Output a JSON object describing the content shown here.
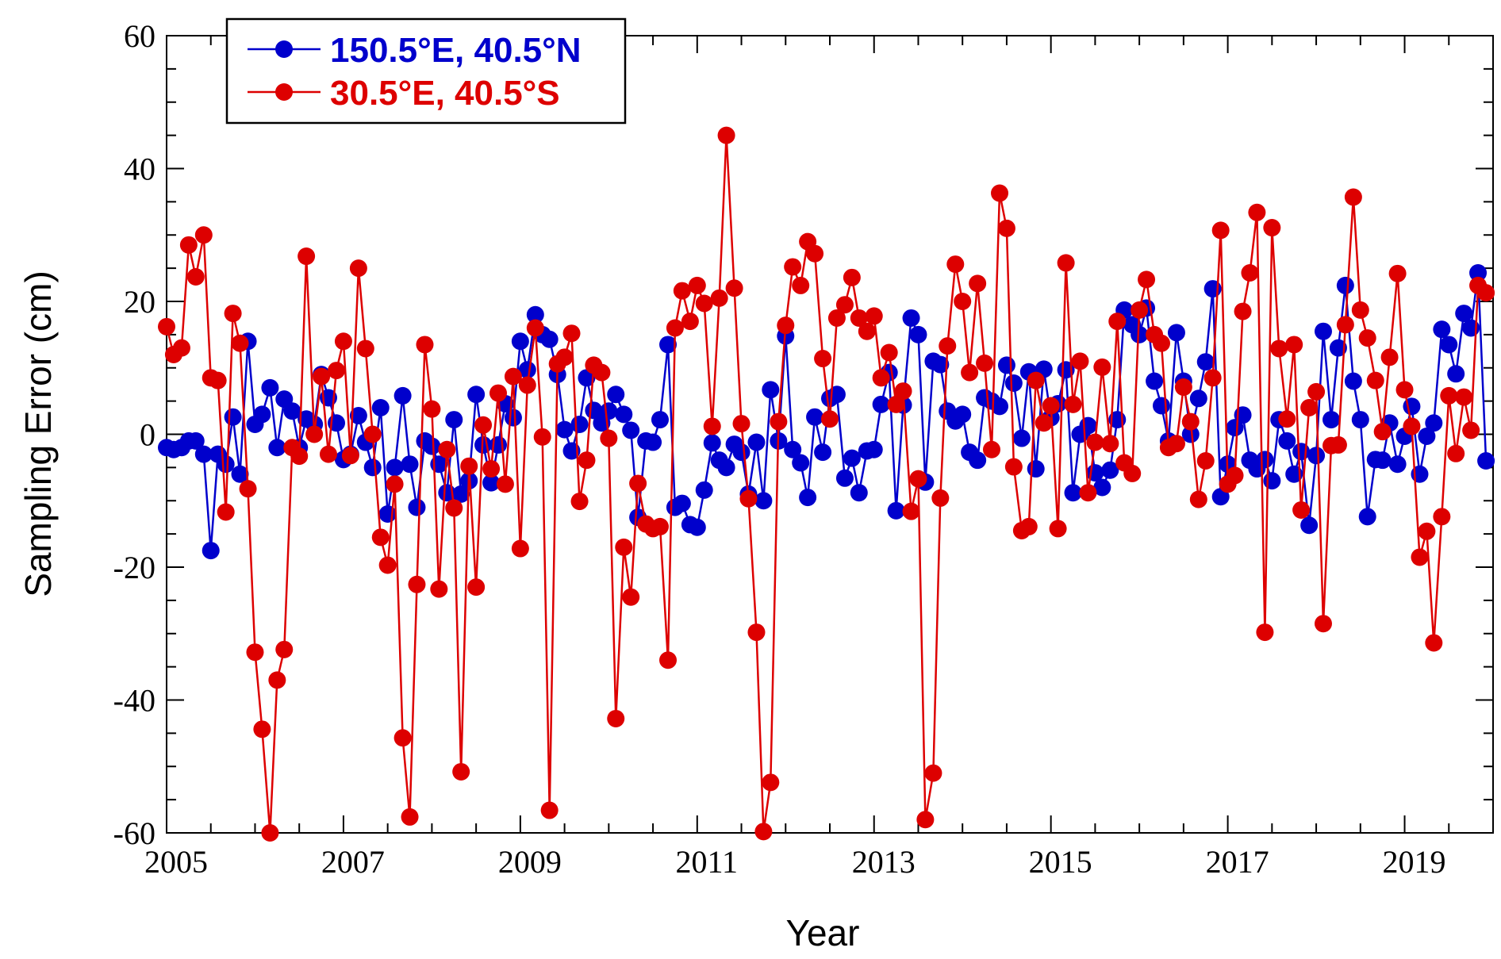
{
  "chart_data": {
    "type": "line",
    "title": "",
    "xlabel": "Year",
    "ylabel": "Sampling Error (cm)",
    "xlim": [
      2005,
      2020
    ],
    "ylim": [
      -60,
      60
    ],
    "x_ticks": [
      2005,
      2007,
      2009,
      2011,
      2013,
      2015,
      2017,
      2019
    ],
    "y_ticks": [
      -60,
      -40,
      -20,
      0,
      20,
      40,
      60
    ],
    "grid": false,
    "legend_position": "top-left",
    "x": [
      2005.0,
      2005.08,
      2005.17,
      2005.25,
      2005.33,
      2005.42,
      2005.5,
      2005.58,
      2005.67,
      2005.75,
      2005.83,
      2005.92,
      2006.0,
      2006.08,
      2006.17,
      2006.25,
      2006.33,
      2006.42,
      2006.5,
      2006.58,
      2006.67,
      2006.75,
      2006.83,
      2006.92,
      2007.0,
      2007.08,
      2007.17,
      2007.25,
      2007.33,
      2007.42,
      2007.5,
      2007.58,
      2007.67,
      2007.75,
      2007.83,
      2007.92,
      2008.0,
      2008.08,
      2008.17,
      2008.25,
      2008.33,
      2008.42,
      2008.5,
      2008.58,
      2008.67,
      2008.75,
      2008.83,
      2008.92,
      2009.0,
      2009.08,
      2009.17,
      2009.25,
      2009.33,
      2009.42,
      2009.5,
      2009.58,
      2009.67,
      2009.75,
      2009.83,
      2009.92,
      2010.0,
      2010.08,
      2010.17,
      2010.25,
      2010.33,
      2010.42,
      2010.5,
      2010.58,
      2010.67,
      2010.75,
      2010.83,
      2010.92,
      2011.0,
      2011.08,
      2011.17,
      2011.25,
      2011.33,
      2011.42,
      2011.5,
      2011.58,
      2011.67,
      2011.75,
      2011.83,
      2011.92,
      2012.0,
      2012.08,
      2012.17,
      2012.25,
      2012.33,
      2012.42,
      2012.5,
      2012.58,
      2012.67,
      2012.75,
      2012.83,
      2012.92,
      2013.0,
      2013.08,
      2013.17,
      2013.25,
      2013.33,
      2013.42,
      2013.5,
      2013.58,
      2013.67,
      2013.75,
      2013.83,
      2013.92,
      2014.0,
      2014.08,
      2014.17,
      2014.25,
      2014.33,
      2014.42,
      2014.5,
      2014.58,
      2014.67,
      2014.75,
      2014.83,
      2014.92,
      2015.0,
      2015.08,
      2015.17,
      2015.25,
      2015.33,
      2015.42,
      2015.5,
      2015.58,
      2015.67,
      2015.75,
      2015.83,
      2015.92,
      2016.0,
      2016.08,
      2016.17,
      2016.25,
      2016.33,
      2016.42,
      2016.5,
      2016.58,
      2016.67,
      2016.75,
      2016.83,
      2016.92,
      2017.0,
      2017.08,
      2017.17,
      2017.25,
      2017.33,
      2017.42,
      2017.5,
      2017.58,
      2017.67,
      2017.75,
      2017.83,
      2017.92,
      2018.0,
      2018.08,
      2018.17,
      2018.25,
      2018.33,
      2018.42,
      2018.5,
      2018.58,
      2018.67,
      2018.75,
      2018.83,
      2018.92,
      2019.0,
      2019.08,
      2019.17,
      2019.25,
      2019.33,
      2019.42,
      2019.5,
      2019.58,
      2019.67,
      2019.75,
      2019.83,
      2019.92
    ],
    "series": [
      {
        "name": "150.5°E, 40.5°N",
        "color": "#0000cc",
        "values": [
          -2,
          -2.3,
          -2,
          -1,
          -1,
          -3,
          -17.5,
          -3,
          -4.5,
          2.6,
          -6,
          14,
          1.5,
          3,
          7,
          -2,
          5.3,
          3.5,
          -2,
          2.3,
          1.5,
          9,
          5.5,
          1.7,
          -3.8,
          -3,
          2.8,
          -1.2,
          -5,
          4,
          -12,
          -5,
          5.8,
          -4.5,
          -11,
          -1,
          -1.8,
          -4.5,
          -8.8,
          2.2,
          -9,
          -7,
          6,
          -1.6,
          -7.3,
          -1.6,
          4.6,
          2.5,
          14,
          9.7,
          18,
          15,
          14.3,
          9,
          0.7,
          -2.5,
          1.5,
          8.5,
          3.6,
          1.7,
          3.5,
          6,
          3,
          0.6,
          -12.5,
          -1,
          -1.2,
          2.2,
          13.5,
          -11,
          -10.4,
          -13.6,
          -14,
          -8.4,
          -1.3,
          -3.9,
          -5,
          -1.5,
          -2.7,
          -9,
          -1.2,
          -10,
          6.7,
          -1,
          14.8,
          -2.3,
          -4.3,
          -9.5,
          2.6,
          -2.7,
          5.4,
          6,
          -6.6,
          -3.6,
          -8.8,
          -2.5,
          -2.3,
          4.5,
          9.3,
          -11.5,
          4.4,
          17.5,
          15,
          -7.2,
          11,
          10.5,
          3.5,
          2,
          3,
          -2.7,
          -3.9,
          5.5,
          5,
          4.2,
          10.4,
          7.7,
          -0.6,
          9.4,
          -5.2,
          9.8,
          2.5,
          4.6,
          9.7,
          -8.8,
          0,
          1.3,
          -5.8,
          -8,
          -5.4,
          2.2,
          18.7,
          16.5,
          15,
          19,
          8,
          4.3,
          -1,
          15.3,
          8,
          0,
          5.4,
          10.9,
          21.9,
          -9.4,
          -4.5,
          1,
          2.9,
          -3.9,
          -5.2,
          -3.8,
          -7,
          2.2,
          -1,
          -6,
          -2.6,
          -13.7,
          -3.2,
          15.5,
          2.2,
          13,
          22.4,
          8,
          2.2,
          -12.4,
          -3.8,
          -3.9,
          1.7,
          -4.5,
          -0.3,
          4.2,
          -6,
          -0.3,
          1.7,
          15.8,
          13.5,
          9.1,
          18.2,
          16,
          24.3,
          -4
        ]
      },
      {
        "name": "30.5°E, 40.5°S",
        "color": "#dd0000",
        "values": [
          16.2,
          12,
          13,
          28.5,
          23.7,
          30,
          8.5,
          8.1,
          -11.7,
          18.2,
          13.7,
          -8.2,
          -32.8,
          -44.4,
          -60,
          -37,
          -32.4,
          -2,
          -3.3,
          26.8,
          0,
          8.7,
          -3,
          9.6,
          14,
          -3.2,
          25,
          12.9,
          0,
          -15.5,
          -19.7,
          -7.5,
          -45.7,
          -57.6,
          -22.6,
          13.5,
          3.8,
          -23.3,
          -2.3,
          -11.1,
          -50.8,
          -4.8,
          -23,
          1.4,
          -5.2,
          6.2,
          -7.5,
          8.7,
          -17.2,
          7.4,
          16,
          -0.4,
          -56.6,
          10.6,
          11.6,
          15.2,
          -10.1,
          -3.9,
          10.4,
          9.3,
          -0.6,
          -42.8,
          -17,
          -24.5,
          -7.4,
          -13.5,
          -14.2,
          -13.9,
          -34,
          16,
          21.6,
          17,
          22.4,
          19.7,
          1.2,
          20.5,
          45,
          22,
          1.6,
          -9.7,
          -29.8,
          -59.8,
          -52.4,
          1.9,
          16.4,
          25.2,
          22.4,
          29,
          27.2,
          11.4,
          2.3,
          17.5,
          19.5,
          23.6,
          17.5,
          15.5,
          17.8,
          8.5,
          12.3,
          4.5,
          6.5,
          -11.6,
          -6.7,
          -58,
          -51,
          -9.6,
          13.3,
          25.6,
          20,
          9.3,
          22.7,
          10.7,
          -2.3,
          36.3,
          31,
          -4.9,
          -14.5,
          -13.9,
          8.1,
          1.7,
          4.3,
          -14.2,
          25.8,
          4.5,
          11,
          -8.8,
          -1.2,
          10.1,
          -1.4,
          17,
          -4.3,
          -5.9,
          18.7,
          23.3,
          15,
          13.7,
          -2,
          -1.4,
          7.1,
          1.9,
          -9.8,
          -4,
          8.5,
          30.7,
          -7.5,
          -6.2,
          18.5,
          24.3,
          33.4,
          -29.8,
          31.1,
          12.9,
          2.3,
          13.5,
          -11.4,
          4,
          6.4,
          -28.5,
          -1.7,
          -1.6,
          16.5,
          35.7,
          18.7,
          14.5,
          8.1,
          0.4,
          11.6,
          24.2,
          6.7,
          1.2,
          -18.5,
          -14.6,
          -31.4,
          -12.4,
          5.8,
          -2.9,
          5.6,
          0.6,
          22.4,
          21.3
        ]
      }
    ]
  }
}
